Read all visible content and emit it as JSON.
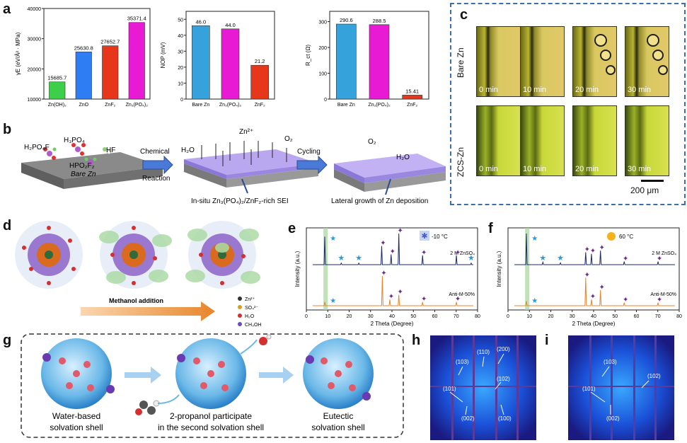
{
  "panel_labels": {
    "a": "a",
    "b": "b",
    "c": "c",
    "d": "d",
    "e": "e",
    "f": "f",
    "g": "g",
    "h": "h",
    "i": "i"
  },
  "colors": {
    "green": "#3ecf4a",
    "blue": "#2f7df2",
    "red": "#e8361a",
    "magenta": "#e81ad4",
    "teal": "#36a2dc",
    "dashed_box": "#3a6fb0",
    "navy": "#1a2a6c",
    "orange": "#e8852a",
    "microscope_green": "#b9c830",
    "ice": "#8fa8e8",
    "sun": "#f5b21a"
  },
  "chart_data": [
    {
      "type": "bar",
      "id": "a1",
      "ylabel": "γE (eV/Å² · MPa)",
      "categories": [
        "Zn(OH)₂",
        "ZnO",
        "ZnF₂",
        "Zn₃(PO₄)₂"
      ],
      "values": [
        15685.7,
        25630.8,
        27652.7,
        35371.4
      ],
      "value_labels": [
        "15685.7",
        "25630.8",
        "27652.7",
        "35371.4"
      ],
      "bar_colors": [
        "#3ecf4a",
        "#2f7df2",
        "#e8361a",
        "#e81ad4"
      ],
      "ylim": [
        10000,
        40000
      ],
      "yticks": [
        10000,
        20000,
        30000,
        40000
      ],
      "ytick_labels": [
        "10000",
        "20000",
        "30000",
        "40000"
      ]
    },
    {
      "type": "bar",
      "id": "a2",
      "ylabel": "NOP (mV)",
      "categories": [
        "Bare Zn",
        "Zn₃(PO₄)₂",
        "ZnF₂"
      ],
      "values": [
        46.0,
        44.0,
        21.2
      ],
      "value_labels": [
        "46.0",
        "44.0",
        "21.2"
      ],
      "bar_colors": [
        "#36a2dc",
        "#e81ad4",
        "#e8361a"
      ],
      "ylim": [
        0,
        55
      ],
      "yticks": [
        0,
        10,
        20,
        30,
        40,
        50
      ],
      "ytick_labels": [
        "0",
        "10",
        "20",
        "30",
        "40",
        "50"
      ]
    },
    {
      "type": "bar",
      "id": "a3",
      "ylabel": "R_ct (Ω)",
      "categories": [
        "Bare Zn",
        "Zn₃(PO₄)₂",
        "ZnF₂"
      ],
      "values": [
        290.6,
        288.5,
        15.41
      ],
      "value_labels": [
        "290.6",
        "288.5",
        "15.41"
      ],
      "bar_colors": [
        "#36a2dc",
        "#e81ad4",
        "#e8361a"
      ],
      "ylim": [
        0,
        340
      ],
      "yticks": [
        0,
        100,
        200,
        300
      ],
      "ytick_labels": [
        "0",
        "100",
        "200",
        "300"
      ]
    },
    {
      "type": "line",
      "id": "e",
      "xlabel": "2 Theta (Degree)",
      "ylabel": "Intensity (a.u.)",
      "xlim": [
        0,
        80
      ],
      "xticks": [
        0,
        10,
        20,
        30,
        40,
        50,
        60,
        70,
        80
      ],
      "xtick_labels": [
        "0",
        "10",
        "20",
        "30",
        "40",
        "50",
        "60",
        "70",
        "80"
      ],
      "temperature": "-10 °C",
      "highlight_x": [
        8,
        10
      ],
      "series": [
        {
          "name": "2 M ZnSO₄",
          "color": "#1a2a6c",
          "peaks": [
            [
              8.6,
              0.9
            ],
            [
              16.3,
              0.05
            ],
            [
              24.5,
              0.05
            ],
            [
              35.2,
              0.6
            ],
            [
              39.6,
              0.33
            ],
            [
              43.2,
              1.0
            ],
            [
              54.3,
              0.3
            ],
            [
              70.1,
              0.3
            ],
            [
              77,
              0.05
            ]
          ]
        },
        {
          "name": "Anti-M-50%",
          "color": "#e8852a",
          "peaks": [
            [
              8.6,
              0.12
            ],
            [
              35.5,
              0.95
            ],
            [
              39,
              0.2
            ],
            [
              43.2,
              0.35
            ],
            [
              54.3,
              0.12
            ],
            [
              70.1,
              0.12
            ]
          ]
        }
      ]
    },
    {
      "type": "line",
      "id": "f",
      "xlabel": "2 Theta (Degree)",
      "ylabel": "Intensity (a.u.)",
      "xlim": [
        0,
        80
      ],
      "xticks": [
        0,
        10,
        20,
        30,
        40,
        50,
        60,
        70,
        80
      ],
      "xtick_labels": [
        "0",
        "10",
        "20",
        "30",
        "40",
        "50",
        "60",
        "70",
        "80"
      ],
      "temperature": "60 °C",
      "highlight_x": [
        8,
        10
      ],
      "series": [
        {
          "name": "2 M ZnSO₄",
          "color": "#1a2a6c",
          "peaks": [
            [
              8.6,
              1.0
            ],
            [
              16.3,
              0.08
            ],
            [
              24.5,
              0.06
            ],
            [
              36.3,
              0.4
            ],
            [
              39,
              0.35
            ],
            [
              43.2,
              0.45
            ],
            [
              54.3,
              0.1
            ],
            [
              70.1,
              0.1
            ]
          ]
        },
        {
          "name": "Anti-M-50%",
          "color": "#e8852a",
          "peaks": [
            [
              8.6,
              0.15
            ],
            [
              36.3,
              0.9
            ],
            [
              39,
              0.2
            ],
            [
              43.2,
              0.5
            ],
            [
              54.3,
              0.1
            ],
            [
              70.1,
              0.1
            ]
          ]
        }
      ]
    }
  ],
  "panel_b": {
    "species_left": [
      "H₂PO₄F",
      "H₃PO₄",
      "HF",
      "HPO₂F₂"
    ],
    "substrate": "Bare Zn",
    "arrow1_label_top": "Chemical",
    "arrow1_label_bottom": "Reaction",
    "middle_labels": [
      "Zn²⁺",
      "H₂O",
      "O₂"
    ],
    "arrow2_label": "Cycling",
    "right_labels": [
      "O₂",
      "H₂O"
    ],
    "caption_middle": "In-situ Zn₃(PO₄)₂/ZnF₂-rich SEI",
    "caption_right": "Lateral growth of Zn deposition"
  },
  "panel_c": {
    "rows": [
      "Bare Zn",
      "ZCS-Zn"
    ],
    "times": [
      "0 min",
      "10 min",
      "20 min",
      "30 min"
    ],
    "scale_bar": "200 μm"
  },
  "panel_d": {
    "legend": [
      "Zn²⁺",
      "SO₄²⁻",
      "H₂O",
      "CH₃OH"
    ],
    "arrow_label": "Methanol addition"
  },
  "panel_g": {
    "captions": [
      "Water-based\nsolvation shell",
      "2-propanol participate\nin the second solvation shell",
      "Eutectic\nsolvation shell"
    ]
  },
  "panel_h": {
    "planes": [
      "(110)",
      "(200)",
      "(103)",
      "(102)",
      "(101)",
      "(002)",
      "(100)"
    ]
  },
  "panel_i": {
    "planes": [
      "(103)",
      "(102)",
      "(101)",
      "(002)"
    ]
  }
}
